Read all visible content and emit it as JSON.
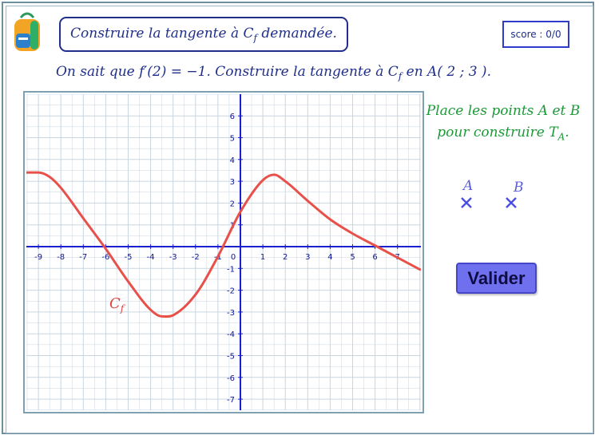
{
  "header": {
    "title": "Construire la tangente à C",
    "title_sub": "f",
    "title_tail": " demandée.",
    "score": "score : 0/0"
  },
  "question": {
    "part1": "On sait que f",
    "prime": "′",
    "part2": "(2) = −1. Construire la tangente à C",
    "sub": "f",
    "part3": " en A( 2 ; 3 )."
  },
  "instructions": {
    "line1": "Place les points A et B",
    "line2_prefix": "pour construire T",
    "line2_sub": "A",
    "line2_suffix": "."
  },
  "points": {
    "a_label": "A",
    "b_label": "B"
  },
  "curve_label": {
    "main": "C",
    "sub": "f"
  },
  "buttons": {
    "valider": "Valider"
  },
  "graph": {
    "x_ticks": [
      "-9",
      "-8",
      "-7",
      "-6",
      "-5",
      "-4",
      "-3",
      "-2",
      "-1",
      "0",
      "1",
      "2",
      "3",
      "4",
      "5",
      "6",
      "7"
    ],
    "y_ticks": [
      "6",
      "5",
      "4",
      "3",
      "2",
      "1",
      "-1",
      "-2",
      "-3",
      "-4",
      "-5",
      "-6",
      "-7"
    ],
    "curve_color": "#e8504a",
    "axis_color": "#1a1fd0",
    "grid_color": "#c9d6df"
  }
}
